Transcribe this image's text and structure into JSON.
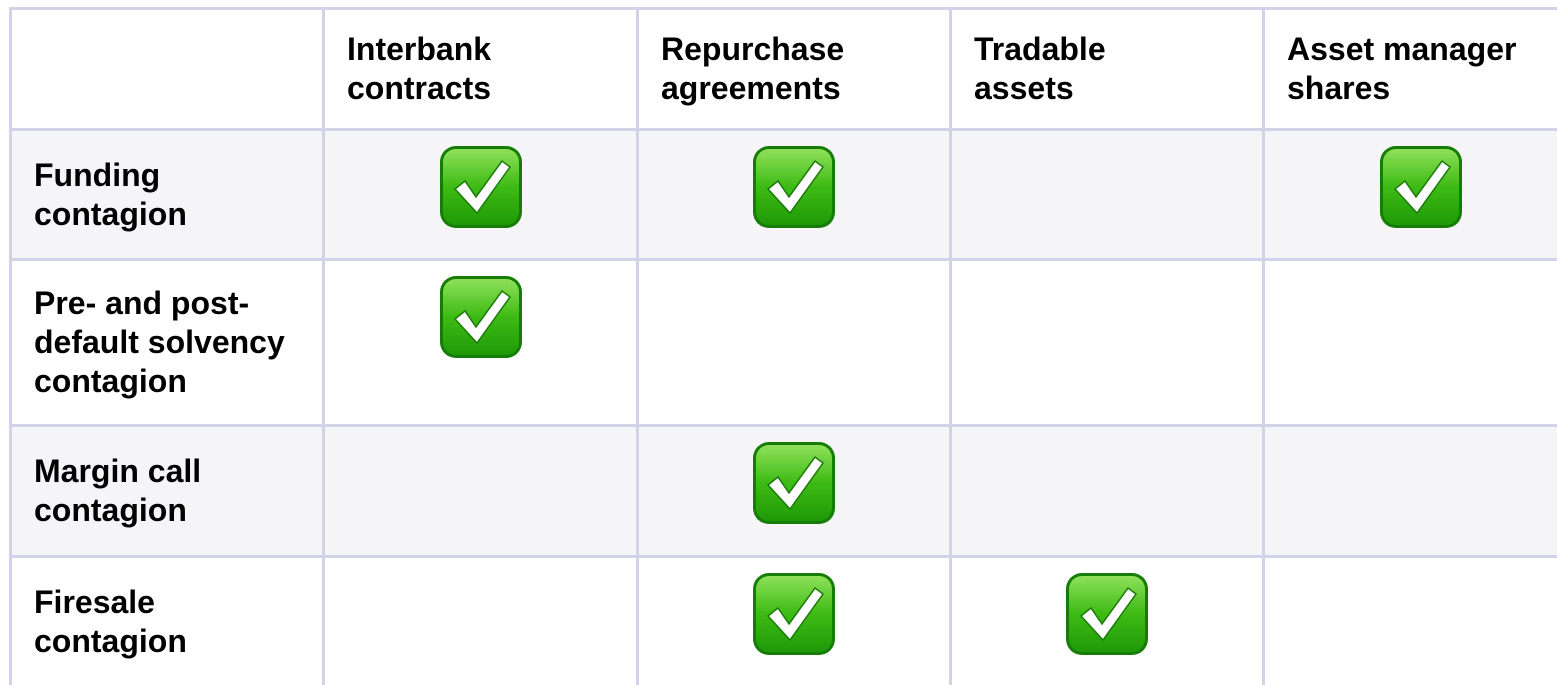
{
  "table": {
    "columns": [
      "Interbank\ncontracts",
      "Repurchase\nagreements",
      "Tradable\nassets",
      "Asset manager\nshares"
    ],
    "rows": [
      {
        "label": "Funding\ncontagion",
        "cells": [
          true,
          true,
          false,
          true
        ]
      },
      {
        "label": "Pre- and post-\ndefault solvency\ncontagion",
        "cells": [
          true,
          false,
          false,
          false
        ]
      },
      {
        "label": "Margin call\ncontagion",
        "cells": [
          false,
          true,
          false,
          false
        ]
      },
      {
        "label": "Firesale\ncontagion",
        "cells": [
          false,
          true,
          true,
          false
        ]
      }
    ]
  }
}
